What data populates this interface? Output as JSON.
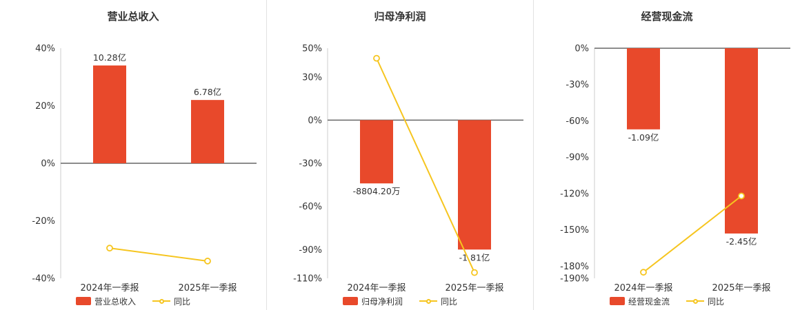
{
  "figure": {
    "background": "#ffffff",
    "divider_color": "#e2e2e2",
    "axis_line_color": "#cccccc",
    "zero_line_color": "#666666",
    "text_color": "#333333"
  },
  "chart_data": [
    {
      "type": "bar+line",
      "title": "营业总收入",
      "categories": [
        "2024年一季报",
        "2025年一季报"
      ],
      "ylim": [
        -40,
        40
      ],
      "yticks": [
        40,
        20,
        0,
        -20,
        -40
      ],
      "grid": false,
      "legend_position": "bottom",
      "bar_series": {
        "name": "营业总收入",
        "color": "#e8492b",
        "values_pct": [
          34,
          22
        ],
        "labels": [
          "10.28亿",
          "6.78亿"
        ]
      },
      "line_series": {
        "name": "同比",
        "color": "#f6c51f",
        "values_pct": [
          -29.5,
          -34
        ]
      }
    },
    {
      "type": "bar+line",
      "title": "归母净利润",
      "categories": [
        "2024年一季报",
        "2025年一季报"
      ],
      "ylim": [
        -110,
        50
      ],
      "yticks": [
        50,
        30,
        0,
        -30,
        -60,
        -90,
        -110
      ],
      "grid": false,
      "legend_position": "bottom",
      "bar_series": {
        "name": "归母净利润",
        "color": "#e8492b",
        "values_pct": [
          -44,
          -90
        ],
        "labels": [
          "-8804.20万",
          "-1.81亿"
        ]
      },
      "line_series": {
        "name": "同比",
        "color": "#f6c51f",
        "values_pct": [
          43,
          -106
        ]
      }
    },
    {
      "type": "bar+line",
      "title": "经营现金流",
      "categories": [
        "2024年一季报",
        "2025年一季报"
      ],
      "ylim": [
        -190,
        0
      ],
      "yticks": [
        0,
        -30,
        -60,
        -90,
        -120,
        -150,
        -180,
        -190
      ],
      "grid": false,
      "legend_position": "bottom",
      "bar_series": {
        "name": "经营现金流",
        "color": "#e8492b",
        "values_pct": [
          -67,
          -153
        ],
        "labels": [
          "-1.09亿",
          "-2.45亿"
        ]
      },
      "line_series": {
        "name": "同比",
        "color": "#f6c51f",
        "values_pct": [
          -185,
          -122
        ]
      }
    }
  ]
}
